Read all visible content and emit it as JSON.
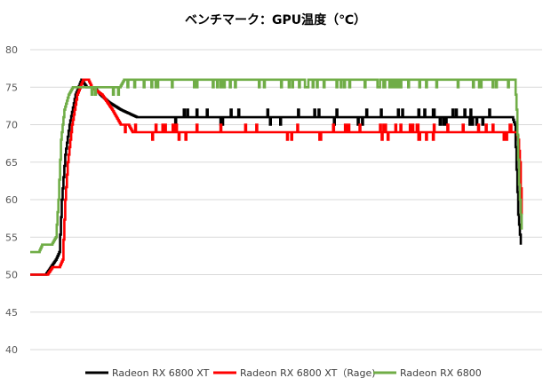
{
  "chart_data": {
    "type": "line",
    "title": "ベンチマーク：GPU温度（℃）",
    "xlabel": "",
    "ylabel": "",
    "ylim": [
      40,
      80
    ],
    "yticks": [
      40,
      45,
      50,
      55,
      60,
      65,
      70,
      75,
      80
    ],
    "grid": true,
    "legend_position": "bottom",
    "x_count": 600,
    "series": [
      {
        "name": "Radeon RX 6800 XT",
        "color": "#000000",
        "points": [
          [
            0,
            50
          ],
          [
            18,
            50
          ],
          [
            24,
            51
          ],
          [
            30,
            52
          ],
          [
            34,
            53
          ],
          [
            37,
            60
          ],
          [
            41,
            66
          ],
          [
            46,
            70
          ],
          [
            53,
            74
          ],
          [
            60,
            76
          ],
          [
            66,
            75
          ],
          [
            75,
            75
          ],
          [
            82,
            74
          ],
          [
            92,
            73
          ],
          [
            106,
            72
          ],
          [
            125,
            71
          ],
          [
            200,
            71
          ],
          [
            300,
            71
          ],
          [
            400,
            71
          ],
          [
            500,
            71
          ],
          [
            565,
            71
          ],
          [
            568,
            70
          ],
          [
            572,
            58
          ],
          [
            575,
            54
          ]
        ],
        "noise": 1
      },
      {
        "name": "Radeon RX 6800 XT（Rage)",
        "color": "#ff0000",
        "points": [
          [
            0,
            50
          ],
          [
            20,
            50
          ],
          [
            26,
            51
          ],
          [
            34,
            51
          ],
          [
            38,
            52
          ],
          [
            41,
            60
          ],
          [
            44,
            65
          ],
          [
            49,
            70
          ],
          [
            55,
            74
          ],
          [
            62,
            76
          ],
          [
            68,
            76
          ],
          [
            72,
            75
          ],
          [
            84,
            74
          ],
          [
            96,
            72
          ],
          [
            106,
            70
          ],
          [
            115,
            70
          ],
          [
            120,
            69
          ],
          [
            200,
            69
          ],
          [
            300,
            69
          ],
          [
            400,
            69
          ],
          [
            500,
            69
          ],
          [
            570,
            69
          ],
          [
            572,
            68
          ],
          [
            574,
            65
          ],
          [
            576,
            58
          ]
        ],
        "noise": 1
      },
      {
        "name": "Radeon RX 6800",
        "color": "#70ad47",
        "points": [
          [
            0,
            53
          ],
          [
            10,
            53
          ],
          [
            14,
            54
          ],
          [
            25,
            54
          ],
          [
            30,
            55
          ],
          [
            33,
            60
          ],
          [
            36,
            68
          ],
          [
            40,
            72
          ],
          [
            45,
            74
          ],
          [
            50,
            75
          ],
          [
            105,
            75
          ],
          [
            110,
            76
          ],
          [
            200,
            76
          ],
          [
            300,
            76
          ],
          [
            400,
            76
          ],
          [
            500,
            76
          ],
          [
            568,
            76
          ],
          [
            570,
            72
          ],
          [
            573,
            62
          ],
          [
            576,
            56
          ]
        ],
        "noise": 1
      }
    ]
  }
}
